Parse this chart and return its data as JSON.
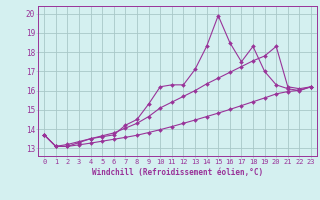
{
  "x": [
    0,
    1,
    2,
    3,
    4,
    5,
    6,
    7,
    8,
    9,
    10,
    11,
    12,
    13,
    14,
    15,
    16,
    17,
    18,
    19,
    20,
    21,
    22,
    23
  ],
  "y_main": [
    13.7,
    13.1,
    13.1,
    13.3,
    13.5,
    13.6,
    13.7,
    14.2,
    14.5,
    15.3,
    16.2,
    16.3,
    16.3,
    17.1,
    18.3,
    19.9,
    18.5,
    17.5,
    18.3,
    17.0,
    16.3,
    16.1,
    16.0,
    16.2
  ],
  "y_upper": [
    13.7,
    13.1,
    13.2,
    13.35,
    13.5,
    13.65,
    13.8,
    14.05,
    14.3,
    14.65,
    15.1,
    15.4,
    15.7,
    16.0,
    16.35,
    16.65,
    16.95,
    17.25,
    17.55,
    17.8,
    18.3,
    16.2,
    16.1,
    16.2
  ],
  "y_lower": [
    13.7,
    13.1,
    13.1,
    13.18,
    13.27,
    13.37,
    13.47,
    13.57,
    13.68,
    13.82,
    13.97,
    14.13,
    14.3,
    14.47,
    14.65,
    14.83,
    15.02,
    15.22,
    15.42,
    15.62,
    15.83,
    15.95,
    16.02,
    16.2
  ],
  "color": "#993399",
  "bg_color": "#d4f0f0",
  "grid_color": "#a8c8c8",
  "ylim": [
    12.6,
    20.4
  ],
  "xlim": [
    -0.5,
    23.5
  ],
  "yticks": [
    13,
    14,
    15,
    16,
    17,
    18,
    19,
    20
  ],
  "xticks": [
    0,
    1,
    2,
    3,
    4,
    5,
    6,
    7,
    8,
    9,
    10,
    11,
    12,
    13,
    14,
    15,
    16,
    17,
    18,
    19,
    20,
    21,
    22,
    23
  ],
  "xlabel": "Windchill (Refroidissement éolien,°C)",
  "marker": "D",
  "marker_size": 2.0,
  "linewidth": 0.8,
  "tick_fontsize": 5.0,
  "xlabel_fontsize": 5.5
}
